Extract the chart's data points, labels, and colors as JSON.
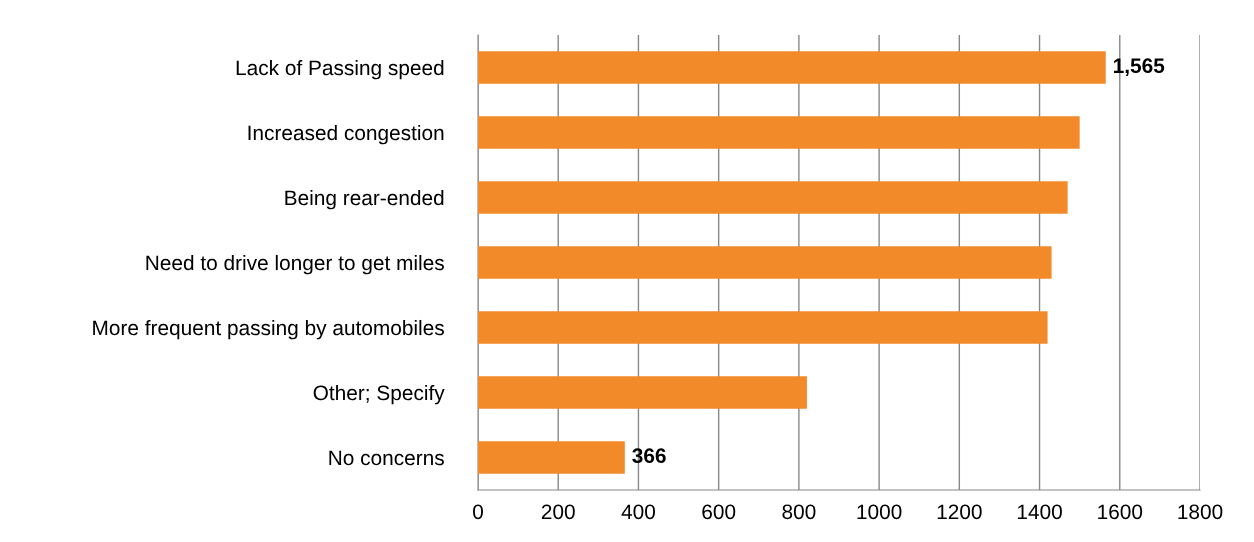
{
  "chart_data": {
    "type": "bar",
    "orientation": "horizontal",
    "categories": [
      "Lack of Passing speed",
      "Increased congestion",
      "Being rear-ended",
      "Need to drive longer to get miles",
      "More frequent passing by automobiles",
      "Other; Specify",
      "No concerns"
    ],
    "values": [
      1565,
      1500,
      1470,
      1430,
      1420,
      820,
      366
    ],
    "value_labels": [
      "1,565",
      null,
      null,
      null,
      null,
      null,
      "366"
    ],
    "color": "#f28a2a",
    "xlim": [
      0,
      1800
    ],
    "xticks": [
      0,
      200,
      400,
      600,
      800,
      1000,
      1200,
      1400,
      1600,
      1800
    ],
    "grid": "x",
    "legend": false
  }
}
